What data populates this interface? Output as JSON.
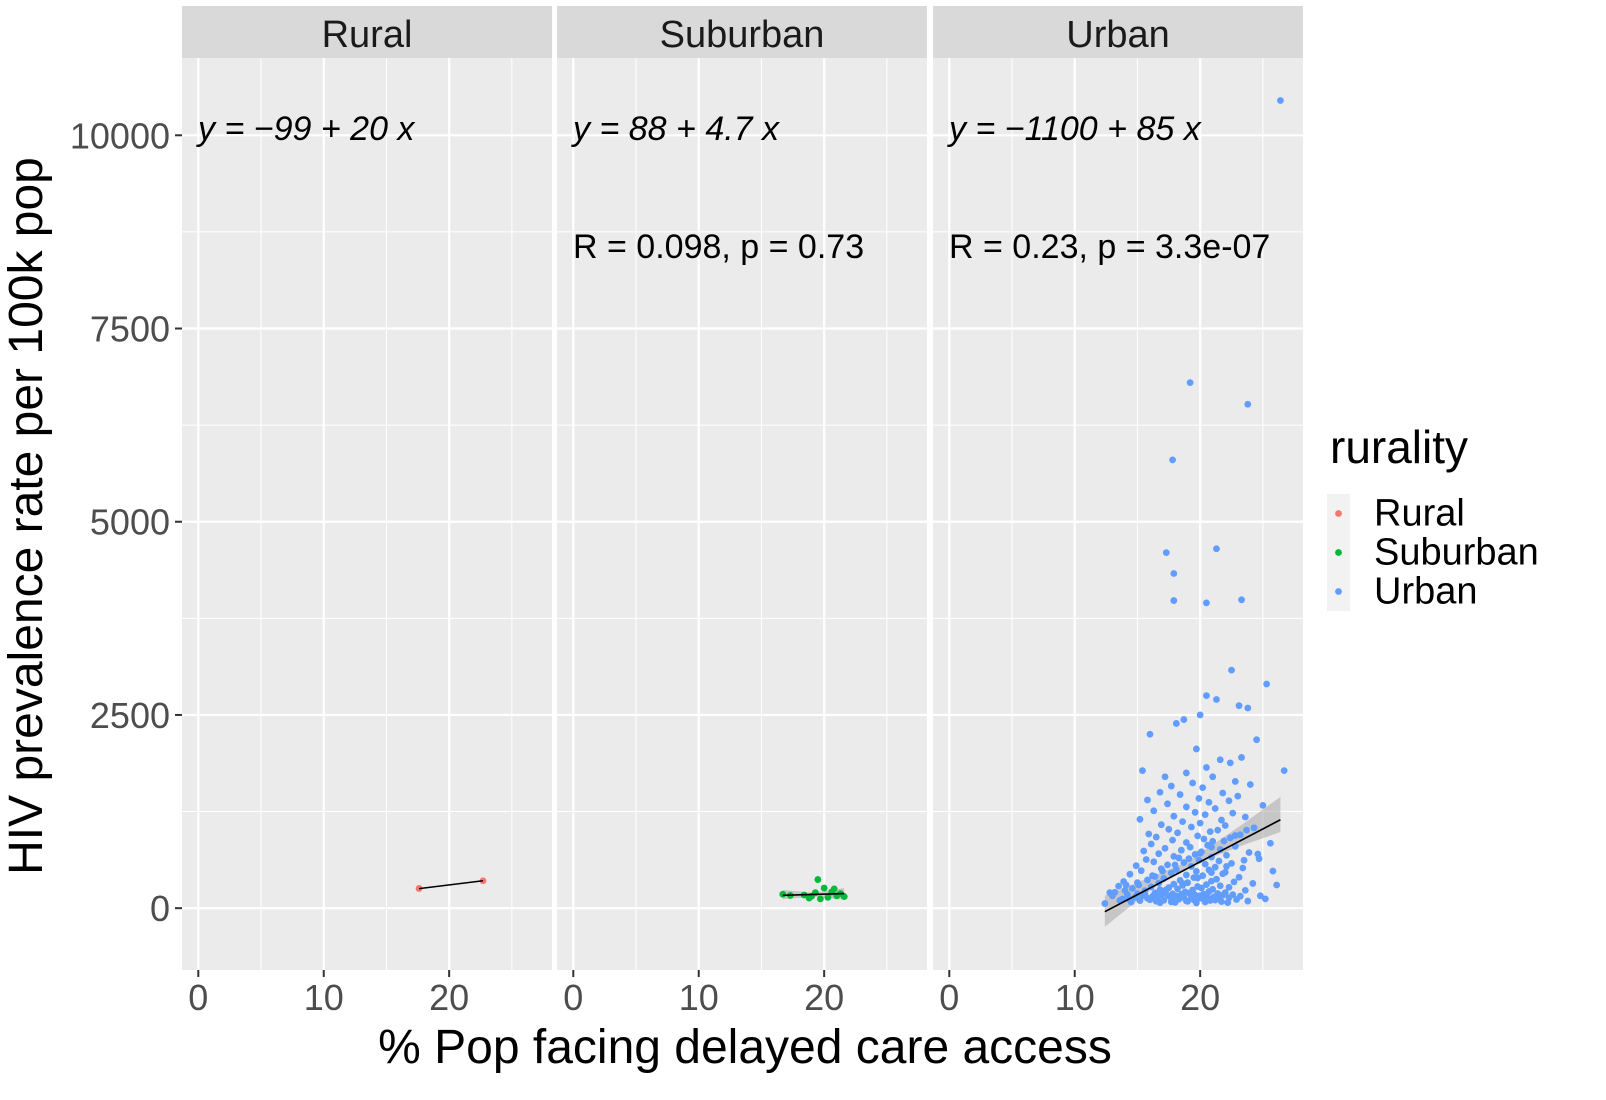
{
  "chart_data": {
    "type": "scatter",
    "facet_variable": "rurality",
    "xlabel": "% Pop facing delayed care access",
    "ylabel": "HIV prevalence rate per 100k pop",
    "xlim": [
      -1.3,
      28.2
    ],
    "ylim": [
      -800,
      11000
    ],
    "x_ticks": [
      0,
      10,
      20
    ],
    "x_tick_labels": [
      "0",
      "10",
      "20"
    ],
    "y_ticks": [
      0,
      2500,
      5000,
      7500,
      10000
    ],
    "y_tick_labels": [
      "0",
      "2500",
      "5000",
      "7500",
      "10000"
    ],
    "grid": true,
    "legend": {
      "title": "rurality",
      "position": "right",
      "entries": [
        "Rural",
        "Suburban",
        "Urban"
      ]
    },
    "colors": {
      "Rural": "#f8766d",
      "Suburban": "#00ba38",
      "Urban": "#619cff",
      "panel_bg": "#ebebeb",
      "strip_bg": "#d9d9d9",
      "grid": "#ffffff",
      "fit_line": "#000000",
      "ci_band": "#999999"
    },
    "panels": [
      {
        "name": "Rural",
        "equation": "y = −99 + 20 x",
        "stats": "",
        "fit": {
          "intercept": -99,
          "slope": 20,
          "x_range": [
            17.6,
            22.7
          ],
          "ci": null
        },
        "points": [
          [
            17.6,
            255
          ],
          [
            22.7,
            355
          ]
        ]
      },
      {
        "name": "Suburban",
        "equation": "y = 88 + 4.7 x",
        "stats": "R = 0.098, p = 0.73",
        "fit": {
          "intercept": 88,
          "slope": 4.7,
          "x_range": [
            16.7,
            21.6
          ],
          "ci": [
            [
              16.7,
              235,
              115
            ],
            [
              19.2,
              200,
              150
            ],
            [
              21.6,
              260,
              110
            ]
          ]
        },
        "points": [
          [
            16.7,
            180
          ],
          [
            17.3,
            165
          ],
          [
            18.4,
            170
          ],
          [
            19.0,
            155
          ],
          [
            19.3,
            200
          ],
          [
            19.5,
            370
          ],
          [
            19.7,
            120
          ],
          [
            20.0,
            260
          ],
          [
            20.3,
            140
          ],
          [
            20.6,
            210
          ],
          [
            20.8,
            250
          ],
          [
            21.0,
            160
          ],
          [
            21.3,
            190
          ],
          [
            21.6,
            150
          ],
          [
            18.8,
            130
          ]
        ]
      },
      {
        "name": "Urban",
        "equation": "y = −1100 + 85 x",
        "stats": "R = 0.23, p = 3.3e-07",
        "fit": {
          "intercept": -1100,
          "slope": 85,
          "x_range": [
            12.4,
            26.4
          ],
          "ci": [
            [
              12.4,
              160,
              -240
            ],
            [
              16,
              400,
              230
            ],
            [
              19,
              600,
              520
            ],
            [
              21,
              820,
              660
            ],
            [
              23.5,
              1100,
              820
            ],
            [
              26.4,
              1440,
              985
            ]
          ]
        },
        "points": [
          [
            26.4,
            10450
          ],
          [
            19.2,
            6800
          ],
          [
            23.8,
            6520
          ],
          [
            17.8,
            5800
          ],
          [
            21.3,
            4650
          ],
          [
            17.3,
            4600
          ],
          [
            17.9,
            4330
          ],
          [
            17.9,
            3980
          ],
          [
            20.5,
            3950
          ],
          [
            23.3,
            3990
          ],
          [
            22.5,
            3080
          ],
          [
            25.3,
            2900
          ],
          [
            20.5,
            2750
          ],
          [
            21.3,
            2700
          ],
          [
            23.1,
            2620
          ],
          [
            23.8,
            2590
          ],
          [
            20.0,
            2500
          ],
          [
            18.7,
            2440
          ],
          [
            18.1,
            2390
          ],
          [
            16.0,
            2250
          ],
          [
            19.7,
            2060
          ],
          [
            24.5,
            2180
          ],
          [
            23.3,
            1950
          ],
          [
            21.6,
            1920
          ],
          [
            22.4,
            1880
          ],
          [
            20.5,
            1820
          ],
          [
            15.4,
            1780
          ],
          [
            26.7,
            1780
          ],
          [
            18.9,
            1750
          ],
          [
            17.2,
            1700
          ],
          [
            21.0,
            1700
          ],
          [
            22.8,
            1640
          ],
          [
            19.4,
            1620
          ],
          [
            24.0,
            1600
          ],
          [
            17.7,
            1580
          ],
          [
            20.2,
            1560
          ],
          [
            16.8,
            1500
          ],
          [
            21.8,
            1490
          ],
          [
            18.4,
            1470
          ],
          [
            23.0,
            1450
          ],
          [
            19.9,
            1420
          ],
          [
            15.8,
            1400
          ],
          [
            22.3,
            1390
          ],
          [
            20.7,
            1370
          ],
          [
            17.4,
            1350
          ],
          [
            25.0,
            1330
          ],
          [
            18.9,
            1310
          ],
          [
            21.2,
            1290
          ],
          [
            16.3,
            1260
          ],
          [
            19.6,
            1240
          ],
          [
            22.6,
            1230
          ],
          [
            20.4,
            1210
          ],
          [
            17.9,
            1190
          ],
          [
            23.6,
            1180
          ],
          [
            15.2,
            1150
          ],
          [
            21.7,
            1140
          ],
          [
            18.6,
            1120
          ],
          [
            20.0,
            1100
          ],
          [
            16.9,
            1080
          ],
          [
            22.0,
            1070
          ],
          [
            19.3,
            1050
          ],
          [
            24.3,
            1040
          ],
          [
            17.5,
            1020
          ],
          [
            21.4,
            1010
          ],
          [
            20.8,
            990
          ],
          [
            18.2,
            975
          ],
          [
            15.9,
            960
          ],
          [
            23.2,
            950
          ],
          [
            19.8,
            935
          ],
          [
            16.5,
            920
          ],
          [
            22.4,
            910
          ],
          [
            20.3,
            895
          ],
          [
            17.8,
            880
          ],
          [
            21.0,
            865
          ],
          [
            18.9,
            850
          ],
          [
            25.6,
            840
          ],
          [
            16.1,
            830
          ],
          [
            20.6,
            815
          ],
          [
            22.8,
            800
          ],
          [
            19.2,
            790
          ],
          [
            17.2,
            775
          ],
          [
            21.6,
            760
          ],
          [
            18.5,
            750
          ],
          [
            15.5,
            740
          ],
          [
            20.1,
            730
          ],
          [
            23.9,
            720
          ],
          [
            16.7,
            705
          ],
          [
            19.6,
            695
          ],
          [
            22.1,
            685
          ],
          [
            17.9,
            670
          ],
          [
            20.9,
            660
          ],
          [
            18.3,
            650
          ],
          [
            24.7,
            640
          ],
          [
            15.7,
            630
          ],
          [
            19.9,
            620
          ],
          [
            21.5,
            610
          ],
          [
            16.3,
            600
          ],
          [
            18.7,
            590
          ],
          [
            22.5,
            580
          ],
          [
            20.4,
            570
          ],
          [
            17.4,
            560
          ],
          [
            14.9,
            550
          ],
          [
            19.3,
            540
          ],
          [
            21.2,
            530
          ],
          [
            23.4,
            520
          ],
          [
            16.9,
            510
          ],
          [
            18.1,
            500
          ],
          [
            20.7,
            495
          ],
          [
            15.3,
            485
          ],
          [
            19.7,
            475
          ],
          [
            22.0,
            465
          ],
          [
            17.7,
            455
          ],
          [
            21.8,
            445
          ],
          [
            14.4,
            440
          ],
          [
            18.9,
            430
          ],
          [
            20.2,
            420
          ],
          [
            16.4,
            410
          ],
          [
            23.1,
            400
          ],
          [
            19.5,
            395
          ],
          [
            17.1,
            385
          ],
          [
            21.3,
            375
          ],
          [
            15.8,
            365
          ],
          [
            18.4,
            360
          ],
          [
            20.9,
            350
          ],
          [
            13.9,
            345
          ],
          [
            22.7,
            340
          ],
          [
            19.0,
            330
          ],
          [
            16.7,
            325
          ],
          [
            24.2,
            320
          ],
          [
            17.9,
            310
          ],
          [
            20.5,
            305
          ],
          [
            15.1,
            300
          ],
          [
            18.6,
            295
          ],
          [
            21.6,
            290
          ],
          [
            13.5,
            285
          ],
          [
            19.8,
            280
          ],
          [
            16.1,
            275
          ],
          [
            22.3,
            270
          ],
          [
            17.5,
            265
          ],
          [
            20.1,
            260
          ],
          [
            14.6,
            255
          ],
          [
            18.2,
            250
          ],
          [
            21.0,
            245
          ],
          [
            16.8,
            240
          ],
          [
            19.4,
            235
          ],
          [
            23.6,
            230
          ],
          [
            15.6,
            225
          ],
          [
            17.2,
            220
          ],
          [
            20.7,
            215
          ],
          [
            18.8,
            210
          ],
          [
            13.2,
            205
          ],
          [
            22.0,
            200
          ],
          [
            16.4,
            198
          ],
          [
            19.1,
            195
          ],
          [
            21.4,
            190
          ],
          [
            15.0,
            188
          ],
          [
            17.8,
            185
          ],
          [
            20.3,
            182
          ],
          [
            18.5,
            180
          ],
          [
            14.2,
            178
          ],
          [
            22.6,
            175
          ],
          [
            16.9,
            172
          ],
          [
            19.6,
            170
          ],
          [
            21.8,
            168
          ],
          [
            17.4,
            165
          ],
          [
            20.0,
            162
          ],
          [
            15.4,
            160
          ],
          [
            18.1,
            158
          ],
          [
            23.2,
            155
          ],
          [
            16.2,
            152
          ],
          [
            19.3,
            150
          ],
          [
            21.1,
            148
          ],
          [
            17.6,
            145
          ],
          [
            14.8,
            142
          ],
          [
            20.6,
            140
          ],
          [
            18.7,
            138
          ],
          [
            22.3,
            135
          ],
          [
            16.6,
            132
          ],
          [
            19.9,
            130
          ],
          [
            15.8,
            128
          ],
          [
            21.5,
            125
          ],
          [
            17.9,
            122
          ],
          [
            20.2,
            120
          ],
          [
            13.8,
            118
          ],
          [
            18.3,
            115
          ],
          [
            22.9,
            112
          ],
          [
            16.0,
            110
          ],
          [
            19.5,
            108
          ],
          [
            21.2,
            105
          ],
          [
            17.1,
            102
          ],
          [
            20.8,
            100
          ],
          [
            15.2,
            98
          ],
          [
            18.9,
            95
          ],
          [
            23.8,
            92
          ],
          [
            16.5,
            90
          ],
          [
            19.0,
            88
          ],
          [
            21.7,
            85
          ],
          [
            17.7,
            82
          ],
          [
            20.4,
            80
          ],
          [
            14.5,
            78
          ],
          [
            18.0,
            75
          ],
          [
            22.2,
            72
          ],
          [
            16.8,
            70
          ],
          [
            19.7,
            68
          ],
          [
            12.4,
            60
          ],
          [
            25.2,
            120
          ],
          [
            26.1,
            300
          ],
          [
            24.8,
            160
          ],
          [
            13.0,
            160
          ],
          [
            14.0,
            230
          ],
          [
            15.0,
            330
          ],
          [
            16.2,
            420
          ],
          [
            17.0,
            480
          ],
          [
            18.0,
            560
          ],
          [
            19.1,
            640
          ],
          [
            20.0,
            710
          ],
          [
            20.9,
            790
          ],
          [
            21.9,
            870
          ],
          [
            22.8,
            940
          ],
          [
            23.7,
            1010
          ],
          [
            14.3,
            120
          ],
          [
            15.6,
            180
          ],
          [
            17.3,
            240
          ],
          [
            18.6,
            320
          ],
          [
            19.8,
            390
          ],
          [
            20.9,
            460
          ],
          [
            22.1,
            540
          ],
          [
            23.5,
            620
          ],
          [
            24.6,
            700
          ],
          [
            25.8,
            480
          ],
          [
            12.8,
            200
          ],
          [
            13.6,
            100
          ],
          [
            14.1,
            300
          ]
        ]
      }
    ]
  }
}
